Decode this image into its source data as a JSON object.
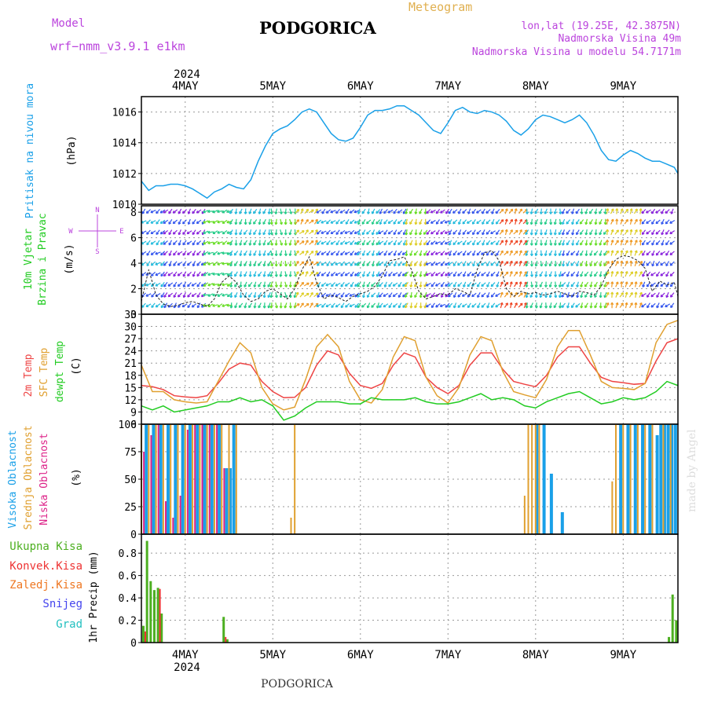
{
  "header": {
    "model_label": "Model",
    "model_name": "wrf−nmm_v3.9.1  e1km",
    "title": "PODGORICA",
    "subtitle": "Meteogram",
    "location": "lon,lat (19.25E, 42.3875N)",
    "elevation": "Nadmorska Visina 49m",
    "model_elevation": "Nadmorska Visina u modelu 54.7171m",
    "credit": "made by Angel",
    "footer": "PODGORICA"
  },
  "time_axis": {
    "year": "2024",
    "day_labels": [
      "4MAY",
      "5MAY",
      "6MAY",
      "7MAY",
      "8MAY",
      "9MAY"
    ],
    "day_positions_hours": [
      12,
      36,
      60,
      84,
      108,
      132
    ],
    "range_hours": [
      0,
      147
    ]
  },
  "colors": {
    "pressure": "#1aa0e8",
    "temp2m": "#ee4444",
    "sfc": "#e0a030",
    "dewpt": "#22cc22",
    "high_cloud": "#1aa0e8",
    "mid_cloud": "#e0a030",
    "low_cloud": "#dd2288",
    "precip_total": "#4caf20",
    "precip_conv": "#ee3333",
    "precip_frz": "#ee7722",
    "snow": "#4444ee",
    "grad": "#22c0c0"
  },
  "chart_data": [
    {
      "type": "line",
      "panel": "pressure",
      "ylabel_lines": [
        "Pritisak na nivou mora",
        "(hPa)"
      ],
      "ylim": [
        1010,
        1017
      ],
      "yticks": [
        1010,
        1012,
        1014,
        1016
      ],
      "grid": true,
      "series": [
        {
          "x": [
            0,
            2,
            4,
            6,
            8,
            10,
            12,
            14,
            16,
            18,
            20,
            22,
            24,
            26,
            28,
            30,
            32,
            34,
            36,
            38,
            40,
            42,
            44,
            46,
            48,
            50,
            52,
            54,
            56,
            58,
            60,
            62,
            64,
            66,
            68,
            70,
            72,
            74,
            76,
            78,
            80,
            82,
            84,
            86,
            88,
            90,
            92,
            94,
            96,
            98,
            100,
            102,
            104,
            106,
            108,
            110,
            112,
            114,
            116,
            118,
            120,
            122,
            124,
            126,
            128,
            130,
            132,
            134,
            136,
            138,
            140,
            142,
            144,
            146,
            147
          ],
          "values": [
            1011.5,
            1010.9,
            1011.2,
            1011.2,
            1011.3,
            1011.3,
            1011.2,
            1011.0,
            1010.7,
            1010.4,
            1010.8,
            1011.0,
            1011.3,
            1011.1,
            1011.0,
            1011.6,
            1012.8,
            1013.8,
            1014.6,
            1014.9,
            1015.1,
            1015.5,
            1016.0,
            1016.2,
            1016.0,
            1015.3,
            1014.6,
            1014.2,
            1014.1,
            1014.3,
            1015.0,
            1015.8,
            1016.1,
            1016.1,
            1016.2,
            1016.4,
            1016.4,
            1016.1,
            1015.8,
            1015.3,
            1014.8,
            1014.6,
            1015.3,
            1016.1,
            1016.3,
            1016.0,
            1015.9,
            1016.1,
            1016.0,
            1015.8,
            1015.4,
            1014.8,
            1014.5,
            1014.9,
            1015.5,
            1015.8,
            1015.7,
            1015.5,
            1015.3,
            1015.5,
            1015.8,
            1015.3,
            1014.5,
            1013.5,
            1012.9,
            1012.8,
            1013.2,
            1013.5,
            1013.3,
            1013.0,
            1012.8,
            1012.8,
            1012.6,
            1012.4,
            1012.0
          ]
        }
      ]
    },
    {
      "type": "line",
      "panel": "wind",
      "ylabel_lines": [
        "10m Vjetar",
        "Brzina i Pravac",
        "(m/s)"
      ],
      "compass_labels": [
        "N",
        "W",
        "E",
        "S"
      ],
      "ylim": [
        0,
        8.5
      ],
      "yticks": [
        0,
        2,
        4,
        6,
        8
      ],
      "grid": true,
      "series": [
        {
          "name": "speed",
          "x": [
            0,
            2,
            4,
            6,
            8,
            10,
            12,
            14,
            16,
            18,
            20,
            22,
            24,
            26,
            28,
            30,
            32,
            34,
            36,
            38,
            40,
            42,
            44,
            46,
            48,
            50,
            52,
            54,
            56,
            58,
            60,
            62,
            64,
            66,
            68,
            70,
            72,
            74,
            76,
            78,
            80,
            82,
            84,
            86,
            88,
            90,
            92,
            94,
            96,
            98,
            100,
            102,
            104,
            106,
            108,
            110,
            112,
            114,
            116,
            118,
            120,
            122,
            124,
            126,
            128,
            130,
            132,
            134,
            136,
            138,
            140,
            142,
            144,
            146,
            147
          ],
          "values": [
            1.0,
            3.5,
            1.5,
            0.8,
            0.6,
            0.7,
            0.9,
            1.0,
            0.8,
            0.6,
            1.2,
            2.5,
            3.0,
            2.5,
            1.5,
            1.0,
            1.2,
            1.8,
            2.0,
            1.6,
            1.2,
            2.0,
            3.5,
            4.5,
            2.5,
            1.2,
            1.5,
            1.3,
            1.0,
            1.4,
            1.6,
            1.8,
            2.2,
            3.0,
            4.2,
            4.3,
            4.5,
            3.5,
            1.8,
            1.2,
            1.4,
            1.6,
            1.5,
            2.0,
            1.8,
            1.5,
            3.5,
            4.8,
            5.0,
            4.2,
            2.0,
            1.4,
            1.8,
            1.6,
            1.7,
            1.5,
            1.6,
            1.8,
            1.6,
            1.4,
            1.8,
            1.7,
            1.5,
            2.2,
            3.5,
            4.3,
            4.6,
            4.5,
            4.2,
            3.6,
            1.8,
            2.6,
            2.3,
            2.5,
            1.4
          ]
        },
        {
          "name": "direction_hint",
          "x": [],
          "values": []
        }
      ]
    },
    {
      "type": "line",
      "panel": "temperature",
      "ylabel_lines": [
        "2m Temp",
        "SFC Temp",
        "dewpt Temp",
        "(C)"
      ],
      "ylim": [
        6,
        33
      ],
      "yticks": [
        6,
        9,
        12,
        15,
        18,
        21,
        24,
        27,
        30,
        33
      ],
      "grid": true,
      "series": [
        {
          "name": "2m Temp",
          "x": [
            0,
            3,
            6,
            9,
            12,
            15,
            18,
            21,
            24,
            27,
            30,
            33,
            36,
            39,
            42,
            45,
            48,
            51,
            54,
            57,
            60,
            63,
            66,
            69,
            72,
            75,
            78,
            81,
            84,
            87,
            90,
            93,
            96,
            99,
            102,
            105,
            108,
            111,
            114,
            117,
            120,
            123,
            126,
            129,
            132,
            135,
            138,
            141,
            144,
            147
          ],
          "values": [
            15.5,
            15.2,
            14.5,
            13.0,
            12.7,
            12.5,
            13.0,
            16.0,
            19.5,
            21.0,
            20.5,
            16.5,
            14.0,
            12.5,
            12.6,
            15.0,
            20.5,
            24.0,
            23.0,
            18.5,
            15.5,
            14.8,
            16.0,
            20.5,
            23.5,
            22.5,
            17.5,
            15.0,
            13.5,
            15.5,
            20.5,
            23.5,
            23.5,
            19.5,
            16.5,
            15.8,
            15.2,
            18.0,
            22.5,
            25.0,
            25.0,
            21.0,
            17.5,
            16.5,
            16.2,
            15.8,
            16.0,
            21.5,
            26.0,
            27.0
          ]
        },
        {
          "name": "SFC Temp",
          "x": [
            0,
            3,
            6,
            9,
            12,
            15,
            18,
            21,
            24,
            27,
            30,
            33,
            36,
            39,
            42,
            45,
            48,
            51,
            54,
            57,
            60,
            63,
            66,
            69,
            72,
            75,
            78,
            81,
            84,
            87,
            90,
            93,
            96,
            99,
            102,
            105,
            108,
            111,
            114,
            117,
            120,
            123,
            126,
            129,
            132,
            135,
            138,
            141,
            144,
            147
          ],
          "values": [
            20.5,
            14.0,
            14.0,
            12.0,
            11.5,
            11.2,
            11.5,
            16.5,
            21.5,
            26.0,
            23.5,
            15.0,
            11.0,
            9.5,
            10.2,
            17.0,
            25.0,
            28.0,
            25.0,
            16.5,
            12.0,
            11.2,
            14.5,
            22.5,
            27.5,
            26.5,
            17.5,
            13.0,
            11.2,
            15.0,
            23.0,
            27.5,
            26.5,
            19.0,
            14.0,
            13.2,
            12.5,
            17.0,
            25.0,
            29.0,
            29.0,
            23.0,
            16.5,
            15.0,
            14.8,
            14.5,
            16.0,
            26.0,
            30.5,
            31.5
          ]
        },
        {
          "name": "dewpt Temp",
          "x": [
            0,
            3,
            6,
            9,
            12,
            15,
            18,
            21,
            24,
            27,
            30,
            33,
            36,
            39,
            42,
            45,
            48,
            51,
            54,
            57,
            60,
            63,
            66,
            69,
            72,
            75,
            78,
            81,
            84,
            87,
            90,
            93,
            96,
            99,
            102,
            105,
            108,
            111,
            114,
            117,
            120,
            123,
            126,
            129,
            132,
            135,
            138,
            141,
            144,
            147
          ],
          "values": [
            10.5,
            9.5,
            10.5,
            9.0,
            9.5,
            10.0,
            10.5,
            11.5,
            11.5,
            12.5,
            11.5,
            12.0,
            10.5,
            7.0,
            8.0,
            10.0,
            11.5,
            11.5,
            11.5,
            11.0,
            11.0,
            12.5,
            12.0,
            12.0,
            12.0,
            12.5,
            11.5,
            11.0,
            11.0,
            11.5,
            12.5,
            13.5,
            12.0,
            12.5,
            12.0,
            10.5,
            10.0,
            11.5,
            12.5,
            13.5,
            14.0,
            12.5,
            11.0,
            11.5,
            12.5,
            12.0,
            12.5,
            14.0,
            16.5,
            15.5
          ]
        }
      ]
    },
    {
      "type": "bar",
      "panel": "cloud",
      "ylabel_lines": [
        "Visoka Oblacnost",
        "Srednja Oblacnost",
        "Niska Oblacnost",
        "(%)"
      ],
      "ylim": [
        0,
        100
      ],
      "yticks": [
        0,
        25,
        50,
        75,
        100
      ],
      "grid": true,
      "series": [
        {
          "name": "Visoka Oblacnost",
          "x": [
            1,
            3,
            5,
            7,
            9,
            11,
            13,
            15,
            17,
            19,
            21,
            23,
            24,
            25,
            108,
            110,
            112,
            115,
            131,
            133,
            135,
            137,
            139,
            141,
            142,
            143,
            144,
            145,
            146
          ],
          "values": [
            100,
            100,
            100,
            100,
            100,
            100,
            100,
            100,
            100,
            100,
            100,
            60,
            60,
            100,
            100,
            100,
            55,
            20,
            100,
            100,
            100,
            100,
            100,
            90,
            100,
            100,
            100,
            100,
            100
          ]
        },
        {
          "name": "Srednja Oblacnost",
          "x": [
            0,
            2,
            4,
            6,
            8,
            10,
            12,
            14,
            16,
            18,
            20,
            22,
            24,
            26,
            36,
            41,
            42,
            105,
            106,
            107,
            108,
            109,
            129,
            130,
            132,
            134,
            136,
            138,
            140,
            143,
            145
          ],
          "values": [
            100,
            100,
            100,
            100,
            100,
            100,
            100,
            100,
            100,
            100,
            100,
            100,
            100,
            100,
            0,
            15,
            100,
            35,
            100,
            100,
            100,
            100,
            48,
            100,
            100,
            100,
            100,
            100,
            100,
            100,
            100
          ]
        },
        {
          "name": "Niska Oblacnost",
          "x": [
            1,
            3,
            5,
            7,
            9,
            11,
            13,
            15,
            17,
            19,
            21,
            23
          ],
          "values": [
            75,
            90,
            100,
            30,
            15,
            35,
            95,
            100,
            100,
            100,
            100,
            60
          ]
        }
      ]
    },
    {
      "type": "bar",
      "panel": "precip",
      "ylabel_lines": [
        "1hr Precip (mm)"
      ],
      "legend": [
        "Ukupna Kisa",
        "Konvek.Kisa",
        "Zaledj.Kisa",
        "Snijeg",
        "Grad"
      ],
      "ylim": [
        0,
        0.97
      ],
      "yticks": [
        0,
        0.2,
        0.4,
        0.6,
        0.8
      ],
      "grid": true,
      "series": [
        {
          "name": "Ukupna Kisa",
          "x": [
            0,
            1,
            2,
            3,
            4,
            5,
            22,
            23,
            144,
            145,
            146
          ],
          "values": [
            0.15,
            0.91,
            0.55,
            0.47,
            0.49,
            0.26,
            0.23,
            0.03,
            0.05,
            0.43,
            0.2
          ]
        },
        {
          "name": "Konvek.Kisa",
          "x": [
            0,
            4,
            22
          ],
          "values": [
            0.1,
            0.48,
            0.05
          ]
        }
      ]
    }
  ]
}
